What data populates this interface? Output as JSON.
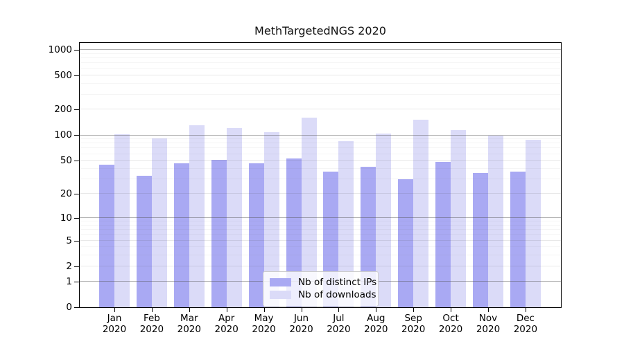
{
  "chart_data": {
    "type": "bar",
    "title": "MethTargetedNGS 2020",
    "categories": [
      "Jan 2020",
      "Feb 2020",
      "Mar 2020",
      "Apr 2020",
      "May 2020",
      "Jun 2020",
      "Jul 2020",
      "Aug 2020",
      "Sep 2020",
      "Oct 2020",
      "Nov 2020",
      "Dec 2020"
    ],
    "series": [
      {
        "name": "Nb of distinct IPs",
        "color": "#a9a9f3",
        "values": [
          45,
          33,
          47,
          51,
          47,
          53,
          37,
          42,
          30,
          48,
          36,
          37
        ]
      },
      {
        "name": "Nb of downloads",
        "color": "#dbdbf8",
        "values": [
          102,
          92,
          132,
          121,
          109,
          162,
          86,
          105,
          153,
          115,
          99,
          88
        ]
      }
    ],
    "xlabel": "",
    "ylabel": "",
    "yscale": "log10(1+v)",
    "yticks": [
      0,
      1,
      2,
      5,
      10,
      20,
      50,
      100,
      200,
      500,
      1000
    ],
    "ylim": [
      0,
      1230
    ],
    "grid": true,
    "grid_over_bars": true,
    "legend_position": "lower-center"
  },
  "colors": {
    "ips_bar": "#a9a9f3",
    "downloads_bar": "#dbdbf8",
    "spine": "#000000",
    "grid_major": "#b0b0b0",
    "grid_minor": "#e8e8e8",
    "grid_faint": "#f4f4f4",
    "legend_border": "#cccccc"
  }
}
